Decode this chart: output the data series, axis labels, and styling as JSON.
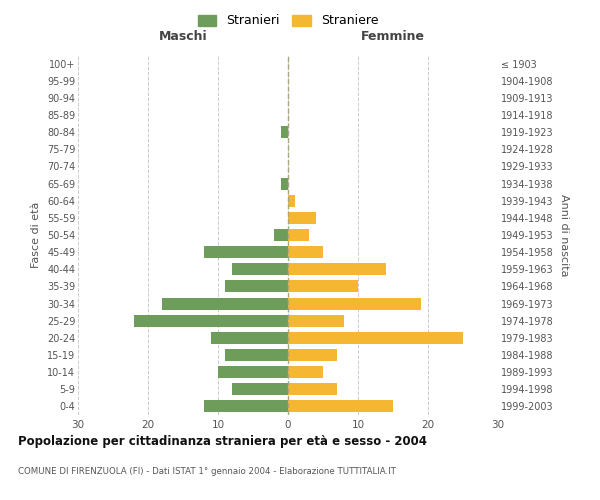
{
  "age_groups": [
    "0-4",
    "5-9",
    "10-14",
    "15-19",
    "20-24",
    "25-29",
    "30-34",
    "35-39",
    "40-44",
    "45-49",
    "50-54",
    "55-59",
    "60-64",
    "65-69",
    "70-74",
    "75-79",
    "80-84",
    "85-89",
    "90-94",
    "95-99",
    "100+"
  ],
  "birth_years": [
    "1999-2003",
    "1994-1998",
    "1989-1993",
    "1984-1988",
    "1979-1983",
    "1974-1978",
    "1969-1973",
    "1964-1968",
    "1959-1963",
    "1954-1958",
    "1949-1953",
    "1944-1948",
    "1939-1943",
    "1934-1938",
    "1929-1933",
    "1924-1928",
    "1919-1923",
    "1914-1918",
    "1909-1913",
    "1904-1908",
    "≤ 1903"
  ],
  "males": [
    12,
    8,
    10,
    9,
    11,
    22,
    18,
    9,
    8,
    12,
    2,
    0,
    0,
    1,
    0,
    0,
    1,
    0,
    0,
    0,
    0
  ],
  "females": [
    15,
    7,
    5,
    7,
    25,
    8,
    19,
    10,
    14,
    5,
    3,
    4,
    1,
    0,
    0,
    0,
    0,
    0,
    0,
    0,
    0
  ],
  "male_color": "#6e9c5a",
  "female_color": "#f5b731",
  "title": "Popolazione per cittadinanza straniera per età e sesso - 2004",
  "subtitle": "COMUNE DI FIRENZUOLA (FI) - Dati ISTAT 1° gennaio 2004 - Elaborazione TUTTITALIA.IT",
  "xlabel_left": "Maschi",
  "xlabel_right": "Femmine",
  "ylabel_left": "Fasce di età",
  "ylabel_right": "Anni di nascita",
  "legend_male": "Stranieri",
  "legend_female": "Straniere",
  "xlim": 30,
  "background_color": "#ffffff",
  "grid_color": "#cccccc"
}
